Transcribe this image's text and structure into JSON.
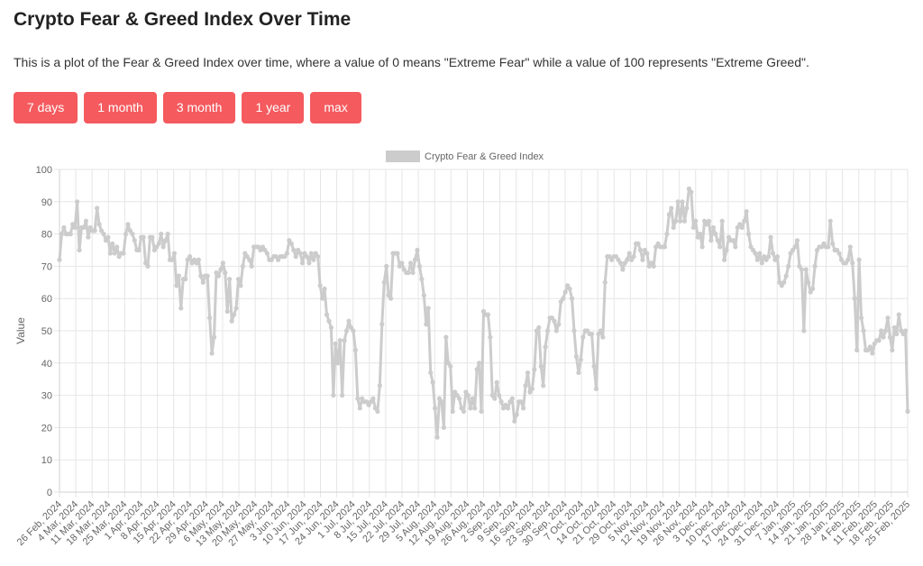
{
  "header": {
    "title": "Crypto Fear & Greed Index Over Time",
    "description": "This is a plot of the Fear & Greed Index over time, where a value of 0 means \"Extreme Fear\" while a value of 100 represents \"Extreme Greed\"."
  },
  "range_buttons": [
    "7 days",
    "1 month",
    "3 month",
    "1 year",
    "max"
  ],
  "colors": {
    "button": "#f55a5e",
    "series": "#cccccc",
    "grid": "#e6e6e6"
  },
  "chart_data": {
    "type": "line",
    "ylabel": "Value",
    "ylim": [
      0,
      100
    ],
    "yticks": [
      0,
      10,
      20,
      30,
      40,
      50,
      60,
      70,
      80,
      90,
      100
    ],
    "grid": true,
    "legend": "top",
    "series": [
      {
        "name": "Crypto Fear & Greed Index"
      }
    ],
    "x_tick_labels": [
      "26 Feb, 2024",
      "4 Mar, 2024",
      "11 Mar, 2024",
      "18 Mar, 2024",
      "25 Mar, 2024",
      "1 Apr, 2024",
      "8 Apr, 2024",
      "15 Apr, 2024",
      "22 Apr, 2024",
      "29 Apr, 2024",
      "6 May, 2024",
      "13 May, 2024",
      "20 May, 2024",
      "27 May, 2024",
      "3 Jun, 2024",
      "10 Jun, 2024",
      "17 Jun, 2024",
      "24 Jun, 2024",
      "1 Jul, 2024",
      "8 Jul, 2024",
      "15 Jul, 2024",
      "22 Jul, 2024",
      "29 Jul, 2024",
      "5 Aug, 2024",
      "12 Aug, 2024",
      "19 Aug, 2024",
      "26 Aug, 2024",
      "2 Sep, 2024",
      "9 Sep, 2024",
      "16 Sep, 2024",
      "23 Sep, 2024",
      "30 Sep, 2024",
      "7 Oct, 2024",
      "14 Oct, 2024",
      "21 Oct, 2024",
      "29 Oct, 2024",
      "5 Nov, 2024",
      "12 Nov, 2024",
      "19 Nov, 2024",
      "26 Nov, 2024",
      "3 Dec, 2024",
      "10 Dec, 2024",
      "17 Dec, 2024",
      "24 Dec, 2024",
      "31 Dec, 2024",
      "7 Jan, 2025",
      "14 Jan, 2025",
      "21 Jan, 2025",
      "28 Jan, 2025",
      "4 Feb, 2025",
      "11 Feb, 2025",
      "18 Feb, 2025",
      "25 Feb, 2025"
    ],
    "values": [
      72,
      80,
      82,
      80,
      80,
      80,
      83,
      82,
      90,
      75,
      82,
      82,
      84,
      79,
      82,
      81,
      81,
      88,
      83,
      81,
      80,
      78,
      79,
      74,
      77,
      74,
      76,
      73,
      74,
      74,
      80,
      83,
      81,
      80,
      78,
      75,
      75,
      79,
      79,
      71,
      70,
      79,
      79,
      75,
      76,
      77,
      80,
      76,
      78,
      80,
      72,
      72,
      74,
      64,
      67,
      57,
      66,
      66,
      72,
      73,
      71,
      72,
      71,
      72,
      67,
      65,
      67,
      67,
      54,
      43,
      48,
      68,
      67,
      69,
      71,
      68,
      56,
      66,
      53,
      55,
      57,
      66,
      64,
      70,
      74,
      73,
      72,
      70,
      76,
      76,
      76,
      75,
      76,
      75,
      74,
      72,
      72,
      73,
      73,
      72,
      73,
      73,
      73,
      74,
      78,
      77,
      75,
      73,
      75,
      74,
      71,
      74,
      73,
      71,
      74,
      72,
      74,
      73,
      64,
      60,
      63,
      55,
      53,
      51,
      30,
      46,
      40,
      47,
      30,
      47,
      50,
      53,
      51,
      50,
      44,
      29,
      26,
      29,
      28,
      28,
      27,
      28,
      29,
      26,
      25,
      33,
      52,
      65,
      70,
      61,
      60,
      74,
      74,
      74,
      70,
      71,
      69,
      68,
      68,
      71,
      68,
      72,
      75,
      70,
      66,
      61,
      52,
      57,
      37,
      34,
      26,
      17,
      29,
      28,
      20,
      48,
      40,
      39,
      25,
      31,
      30,
      29,
      26,
      25,
      31,
      30,
      26,
      29,
      26,
      38,
      40,
      25,
      56,
      55,
      55,
      48,
      30,
      29,
      34,
      30,
      28,
      26,
      27,
      26,
      28,
      29,
      22,
      24,
      28,
      28,
      26,
      33,
      37,
      31,
      32,
      38,
      50,
      51,
      39,
      33,
      45,
      50,
      54,
      54,
      53,
      50,
      52,
      59,
      60,
      62,
      64,
      63,
      60,
      50,
      42,
      37,
      41,
      48,
      50,
      50,
      49,
      49,
      39,
      32,
      49,
      50,
      48,
      65,
      73,
      73,
      72,
      73,
      73,
      72,
      71,
      69,
      71,
      72,
      74,
      72,
      73,
      77,
      77,
      75,
      72,
      75,
      74,
      70,
      71,
      70,
      76,
      77,
      76,
      76,
      76,
      80,
      86,
      88,
      82,
      84,
      90,
      84,
      90,
      84,
      88,
      94,
      93,
      82,
      84,
      79,
      80,
      76,
      84,
      83,
      84,
      78,
      82,
      80,
      78,
      76,
      84,
      72,
      75,
      79,
      78,
      78,
      76,
      82,
      83,
      82,
      84,
      87,
      80,
      76,
      75,
      74,
      72,
      74,
      71,
      73,
      72,
      73,
      79,
      74,
      72,
      73,
      65,
      64,
      65,
      67,
      70,
      74,
      75,
      76,
      78,
      70,
      69,
      50,
      69,
      65,
      62,
      63,
      70,
      75,
      76,
      76,
      77,
      76,
      76,
      84,
      77,
      75,
      75,
      74,
      72,
      71,
      71,
      72,
      76,
      71,
      60,
      44,
      72,
      54,
      50,
      44,
      44,
      45,
      43,
      46,
      47,
      47,
      50,
      48,
      50,
      54,
      48,
      44,
      51,
      49,
      55,
      50,
      49,
      50,
      25
    ]
  }
}
